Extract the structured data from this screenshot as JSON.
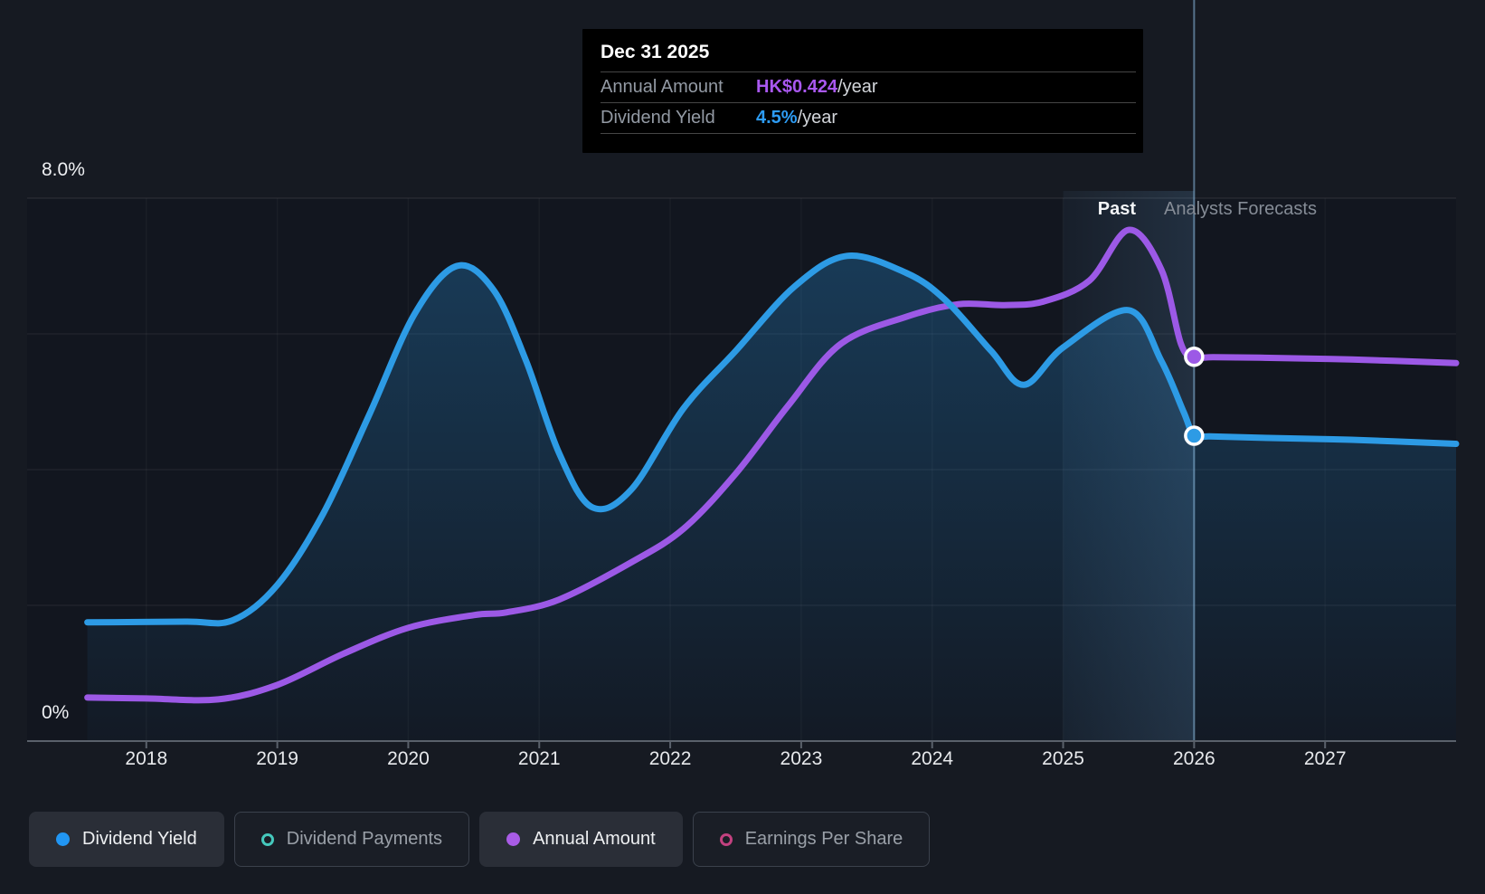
{
  "tooltip": {
    "title": "Dec 31 2025",
    "rows": [
      {
        "label": "Annual Amount",
        "value": "HK$0.424",
        "suffix": "/year",
        "value_color": "#a958f0"
      },
      {
        "label": "Dividend Yield",
        "value": "4.5%",
        "suffix": "/year",
        "value_color": "#2d9cf4"
      }
    ]
  },
  "annotations": {
    "past": "Past",
    "forecast": "Analysts Forecasts"
  },
  "axis": {
    "y_top_label": "8.0%",
    "y_bottom_label": "0%",
    "x_tick_years": [
      2018,
      2019,
      2020,
      2021,
      2022,
      2023,
      2024,
      2025,
      2026,
      2027
    ]
  },
  "legend": {
    "items": [
      {
        "label": "Dividend Yield",
        "color": "#2196f3",
        "style": "filled",
        "active": true
      },
      {
        "label": "Dividend Payments",
        "color": "#45c8bc",
        "style": "hollow",
        "active": false
      },
      {
        "label": "Annual Amount",
        "color": "#a95ce6",
        "style": "filled",
        "active": true
      },
      {
        "label": "Earnings Per Share",
        "color": "#c2417f",
        "style": "hollow",
        "active": false
      }
    ]
  },
  "chart_data": {
    "type": "area",
    "x_axis": {
      "min": 2017.09,
      "max": 2028.0,
      "data_start": 2017.55
    },
    "y_axis_percent": {
      "min": 0,
      "max": 8,
      "gridlines": [
        2,
        4,
        6,
        8
      ]
    },
    "y_axis_amount_hkd": {
      "min": 0,
      "max": 0.599
    },
    "divider_x": 2026.0,
    "highlight_band": {
      "from": 2025.0,
      "to": 2026.0
    },
    "colors": {
      "yield_line": "#2d9be5",
      "amount_line": "#9c59e6",
      "fill_top": "rgba(39,143,216,0.30)",
      "fill_bottom": "rgba(39,143,216,0.03)",
      "band_left": "rgba(125,195,255,0.05)",
      "band_right": "rgba(125,195,255,0.15)",
      "divider": "rgba(141,189,227,0.55)",
      "grid": "rgba(255,255,255,0.055)",
      "grid_vertical": "rgba(255,255,255,0.035)",
      "axis_line": "#5a616b",
      "plot_bg": "#12161f",
      "marker_ring": "#ffffff"
    },
    "series": [
      {
        "name": "Dividend Yield",
        "unit": "%",
        "scale": "percent",
        "marker": {
          "x": 2026.0,
          "y": 4.5
        },
        "points": [
          [
            2017.55,
            1.75
          ],
          [
            2018.3,
            1.76
          ],
          [
            2018.66,
            1.78
          ],
          [
            2019.0,
            2.3
          ],
          [
            2019.35,
            3.35
          ],
          [
            2019.7,
            4.8
          ],
          [
            2020.05,
            6.3
          ],
          [
            2020.37,
            7.0
          ],
          [
            2020.65,
            6.65
          ],
          [
            2020.9,
            5.6
          ],
          [
            2021.15,
            4.25
          ],
          [
            2021.4,
            3.45
          ],
          [
            2021.7,
            3.7
          ],
          [
            2022.1,
            4.9
          ],
          [
            2022.5,
            5.75
          ],
          [
            2022.95,
            6.7
          ],
          [
            2023.35,
            7.15
          ],
          [
            2023.8,
            6.9
          ],
          [
            2024.1,
            6.5
          ],
          [
            2024.45,
            5.75
          ],
          [
            2024.7,
            5.25
          ],
          [
            2025.0,
            5.8
          ],
          [
            2025.5,
            6.35
          ],
          [
            2025.75,
            5.6
          ],
          [
            2025.92,
            4.85
          ],
          [
            2026.0,
            4.5
          ],
          [
            2026.12,
            4.49
          ],
          [
            2026.5,
            4.47
          ],
          [
            2027.2,
            4.44
          ],
          [
            2028.0,
            4.38
          ]
        ]
      },
      {
        "name": "Annual Amount",
        "unit": "HK$",
        "scale": "hkd",
        "marker": {
          "x": 2026.0,
          "y": 0.424
        },
        "points": [
          [
            2017.55,
            0.048
          ],
          [
            2018.0,
            0.047
          ],
          [
            2018.55,
            0.046
          ],
          [
            2019.0,
            0.062
          ],
          [
            2019.5,
            0.096
          ],
          [
            2020.0,
            0.125
          ],
          [
            2020.5,
            0.139
          ],
          [
            2020.75,
            0.142
          ],
          [
            2021.15,
            0.156
          ],
          [
            2021.7,
            0.197
          ],
          [
            2022.1,
            0.234
          ],
          [
            2022.5,
            0.295
          ],
          [
            2022.9,
            0.37
          ],
          [
            2023.3,
            0.438
          ],
          [
            2023.8,
            0.468
          ],
          [
            2024.2,
            0.482
          ],
          [
            2024.55,
            0.481
          ],
          [
            2024.85,
            0.485
          ],
          [
            2025.2,
            0.508
          ],
          [
            2025.5,
            0.564
          ],
          [
            2025.75,
            0.52
          ],
          [
            2025.9,
            0.438
          ],
          [
            2026.0,
            0.424
          ],
          [
            2026.15,
            0.4235
          ],
          [
            2026.5,
            0.423
          ],
          [
            2027.2,
            0.421
          ],
          [
            2028.0,
            0.417
          ]
        ]
      }
    ]
  }
}
